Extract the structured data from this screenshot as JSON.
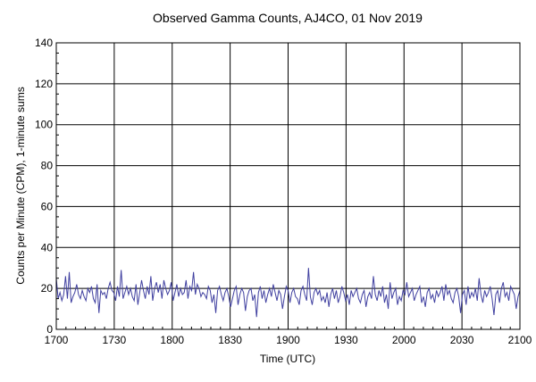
{
  "chart_data": {
    "type": "line",
    "title": "Observed Gamma Counts, AJ4CO, 01 Nov 2019",
    "xlabel": "Time (UTC)",
    "ylabel": "Counts per Minute (CPM), 1-minute sums",
    "x_ticks": [
      "1700",
      "1730",
      "1800",
      "1830",
      "1900",
      "1930",
      "2000",
      "2030",
      "2100"
    ],
    "y_ticks": [
      "0",
      "20",
      "40",
      "60",
      "80",
      "100",
      "120",
      "140"
    ],
    "xlim": [
      0,
      240
    ],
    "ylim": [
      0,
      140
    ],
    "grid": true,
    "line_color": "#4040a0",
    "series": [
      {
        "values": [
          25,
          15,
          18,
          14,
          17,
          26,
          15,
          28,
          13,
          16,
          18,
          22,
          17,
          15,
          19,
          16,
          14,
          20,
          18,
          21,
          15,
          13,
          22,
          8,
          19,
          17,
          18,
          15,
          20,
          23,
          19,
          18,
          14,
          21,
          16,
          29,
          15,
          18,
          21,
          17,
          20,
          16,
          14,
          22,
          12,
          18,
          24,
          19,
          15,
          21,
          17,
          26,
          14,
          20,
          23,
          18,
          22,
          15,
          24,
          20,
          17,
          19,
          23,
          14,
          18,
          22,
          16,
          20,
          17,
          18,
          24,
          15,
          21,
          19,
          28,
          17,
          22,
          20,
          16,
          18,
          17,
          15,
          21,
          19,
          13,
          17,
          8,
          19,
          21,
          17,
          14,
          18,
          20,
          16,
          11,
          15,
          19,
          21,
          12,
          17,
          20,
          18,
          9,
          16,
          19,
          20,
          14,
          17,
          6,
          18,
          21,
          15,
          19,
          13,
          17,
          20,
          16,
          22,
          18,
          14,
          19,
          17,
          10,
          16,
          21,
          19,
          13,
          18,
          20,
          16,
          15,
          12,
          19,
          21,
          17,
          14,
          30,
          16,
          12,
          18,
          20,
          17,
          19,
          14,
          16,
          13,
          18,
          11,
          17,
          20,
          15,
          19,
          13,
          16,
          21,
          18,
          14,
          17,
          12,
          19,
          16,
          18,
          20,
          15,
          13,
          17,
          19,
          11,
          16,
          18,
          15,
          26,
          17,
          14,
          19,
          16,
          21,
          13,
          17,
          10,
          23,
          15,
          18,
          20,
          12,
          16,
          14,
          19,
          17,
          23,
          16,
          18,
          20,
          14,
          17,
          19,
          21,
          13,
          16,
          11,
          18,
          20,
          15,
          17,
          13,
          19,
          16,
          18,
          21,
          14,
          22,
          17,
          19,
          15,
          13,
          18,
          20,
          16,
          8,
          17,
          19,
          12,
          21,
          15,
          18,
          16,
          20,
          14,
          25,
          17,
          13,
          19,
          16,
          18,
          21,
          15,
          7,
          17,
          19,
          13,
          20,
          23,
          16,
          18,
          14,
          21,
          19,
          17,
          10,
          16,
          19
        ]
      }
    ]
  }
}
